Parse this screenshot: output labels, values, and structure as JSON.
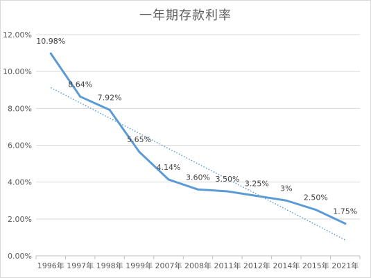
{
  "chart_data": {
    "type": "line",
    "title": "一年期存款利率",
    "categories": [
      "1996年",
      "1997年",
      "1998年",
      "1999年",
      "2007年",
      "2008年",
      "2011年",
      "2012年",
      "2014年",
      "2015年",
      "2021年"
    ],
    "series": [
      {
        "values": [
          10.98,
          8.64,
          7.92,
          5.65,
          4.14,
          3.6,
          3.5,
          3.25,
          3.0,
          2.5,
          1.75
        ],
        "data_labels": [
          "10.98%",
          "8.64%",
          "7.92%",
          "5.65%",
          "4.14%",
          "3.60%",
          "3.50%",
          "3.25%",
          "3%",
          "2.50%",
          "1.75%"
        ],
        "color": "#5b9bd5"
      }
    ],
    "trendline": {
      "type": "linear",
      "style": "dotted",
      "color": "#5b9bd5"
    },
    "y_ticks": [
      "0.00%",
      "2.00%",
      "4.00%",
      "6.00%",
      "8.00%",
      "10.00%",
      "12.00%"
    ],
    "ylim": [
      0,
      12
    ],
    "grid": true,
    "legend": "none"
  }
}
